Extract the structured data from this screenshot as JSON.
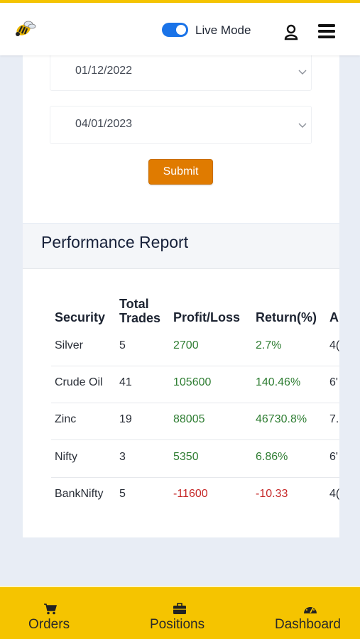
{
  "header": {
    "live_mode_label": "Live Mode",
    "live_mode_on": true,
    "icons": [
      "bee-logo-icon",
      "user-icon",
      "hamburger-menu-icon"
    ]
  },
  "filters": {
    "start_date": "01/12/2022",
    "end_date": "04/01/2023",
    "submit_label": "Submit"
  },
  "report": {
    "title": "Performance Report",
    "columns": [
      "Security",
      "Total Trades",
      "Profit/Loss",
      "Return(%)",
      "A"
    ],
    "rows": [
      {
        "security": "Silver",
        "trades": "5",
        "pl": "2700",
        "ret": "2.7%",
        "a": "4("
      },
      {
        "security": "Crude Oil",
        "trades": "41",
        "pl": "105600",
        "ret": "140.46%",
        "a": "6'"
      },
      {
        "security": "Zinc",
        "trades": "19",
        "pl": "88005",
        "ret": "46730.8%",
        "a": "7."
      },
      {
        "security": "Nifty",
        "trades": "3",
        "pl": "5350",
        "ret": "6.86%",
        "a": "6'"
      },
      {
        "security": "BankNifty",
        "trades": "5",
        "pl": "-11600",
        "ret": "-10.33",
        "a": "4("
      }
    ]
  },
  "bottom_nav": {
    "orders": "Orders",
    "positions": "Positions",
    "dashboard": "Dashboard"
  },
  "colors": {
    "accent_yellow": "#f5c400",
    "submit_orange": "#e07b00",
    "toggle_blue": "#1a73e8",
    "profit_green": "#2e7d32",
    "loss_red": "#c62828"
  }
}
